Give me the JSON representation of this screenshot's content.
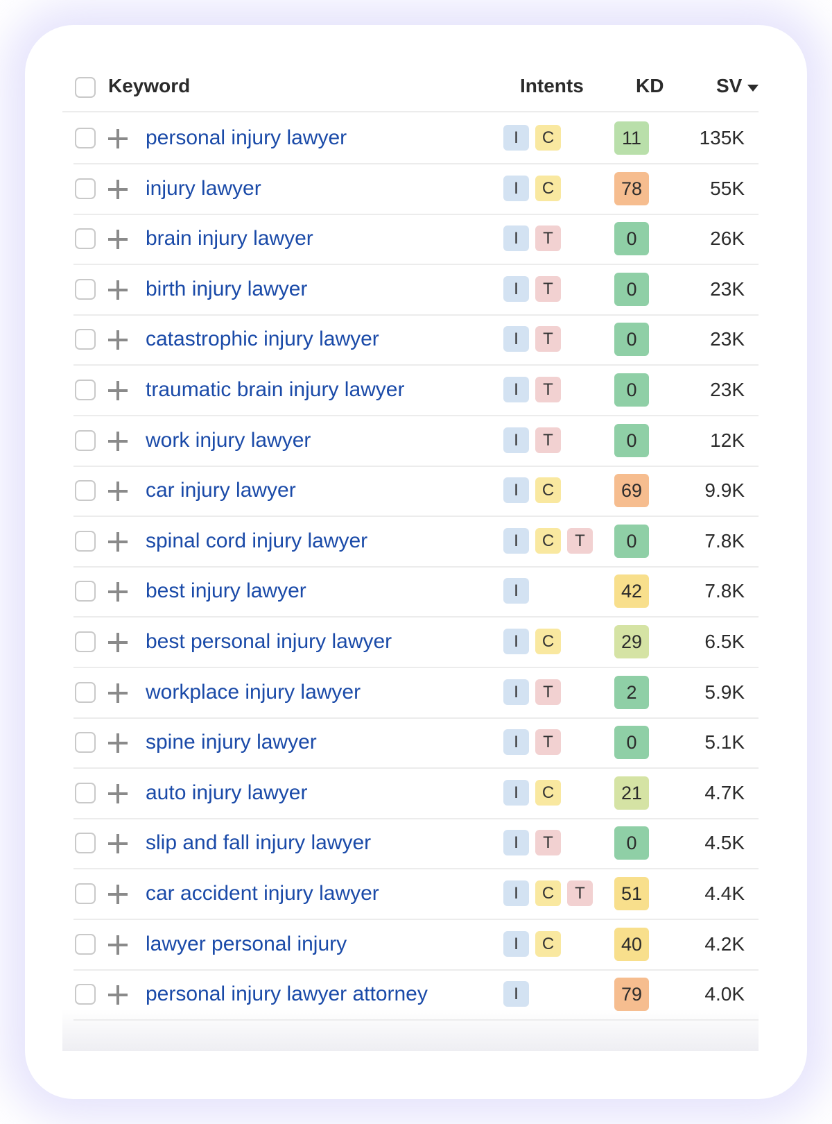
{
  "header": {
    "keyword": "Keyword",
    "intents": "Intents",
    "kd": "KD",
    "sv": "SV"
  },
  "colors": {
    "kd_green": "#8fcfa6",
    "kd_light_green": "#b9dfaa",
    "kd_yellow_green": "#d5e3a4",
    "kd_yellow": "#f8df8c",
    "kd_orange": "#f6bd8f",
    "intent_I": "#d3e2f2",
    "intent_C": "#f9e8a0",
    "intent_T": "#f2d1d1",
    "keyword_link": "#1a4aa8"
  },
  "rows": [
    {
      "keyword": "personal injury lawyer",
      "intents": [
        "I",
        "C"
      ],
      "kd": "11",
      "kd_color": "#b9dfaa",
      "sv": "135K"
    },
    {
      "keyword": "injury lawyer",
      "intents": [
        "I",
        "C"
      ],
      "kd": "78",
      "kd_color": "#f6bd8f",
      "sv": "55K"
    },
    {
      "keyword": "brain injury lawyer",
      "intents": [
        "I",
        "T"
      ],
      "kd": "0",
      "kd_color": "#8fcfa6",
      "sv": "26K"
    },
    {
      "keyword": "birth injury lawyer",
      "intents": [
        "I",
        "T"
      ],
      "kd": "0",
      "kd_color": "#8fcfa6",
      "sv": "23K"
    },
    {
      "keyword": "catastrophic injury lawyer",
      "intents": [
        "I",
        "T"
      ],
      "kd": "0",
      "kd_color": "#8fcfa6",
      "sv": "23K"
    },
    {
      "keyword": "traumatic brain injury lawyer",
      "intents": [
        "I",
        "T"
      ],
      "kd": "0",
      "kd_color": "#8fcfa6",
      "sv": "23K"
    },
    {
      "keyword": "work injury lawyer",
      "intents": [
        "I",
        "T"
      ],
      "kd": "0",
      "kd_color": "#8fcfa6",
      "sv": "12K"
    },
    {
      "keyword": "car injury lawyer",
      "intents": [
        "I",
        "C"
      ],
      "kd": "69",
      "kd_color": "#f6bd8f",
      "sv": "9.9K"
    },
    {
      "keyword": "spinal cord injury lawyer",
      "intents": [
        "I",
        "C",
        "T"
      ],
      "kd": "0",
      "kd_color": "#8fcfa6",
      "sv": "7.8K"
    },
    {
      "keyword": "best injury lawyer",
      "intents": [
        "I"
      ],
      "kd": "42",
      "kd_color": "#f8df8c",
      "sv": "7.8K"
    },
    {
      "keyword": "best personal injury lawyer",
      "intents": [
        "I",
        "C"
      ],
      "kd": "29",
      "kd_color": "#d5e3a4",
      "sv": "6.5K"
    },
    {
      "keyword": "workplace injury lawyer",
      "intents": [
        "I",
        "T"
      ],
      "kd": "2",
      "kd_color": "#8fcfa6",
      "sv": "5.9K"
    },
    {
      "keyword": "spine injury lawyer",
      "intents": [
        "I",
        "T"
      ],
      "kd": "0",
      "kd_color": "#8fcfa6",
      "sv": "5.1K"
    },
    {
      "keyword": "auto injury lawyer",
      "intents": [
        "I",
        "C"
      ],
      "kd": "21",
      "kd_color": "#d5e3a4",
      "sv": "4.7K"
    },
    {
      "keyword": "slip and fall injury lawyer",
      "intents": [
        "I",
        "T"
      ],
      "kd": "0",
      "kd_color": "#8fcfa6",
      "sv": "4.5K"
    },
    {
      "keyword": "car accident injury lawyer",
      "intents": [
        "I",
        "C",
        "T"
      ],
      "kd": "51",
      "kd_color": "#f8df8c",
      "sv": "4.4K"
    },
    {
      "keyword": "lawyer personal injury",
      "intents": [
        "I",
        "C"
      ],
      "kd": "40",
      "kd_color": "#f8df8c",
      "sv": "4.2K"
    },
    {
      "keyword": "personal injury lawyer attorney",
      "intents": [
        "I"
      ],
      "kd": "79",
      "kd_color": "#f6bd8f",
      "sv": "4.0K"
    }
  ]
}
